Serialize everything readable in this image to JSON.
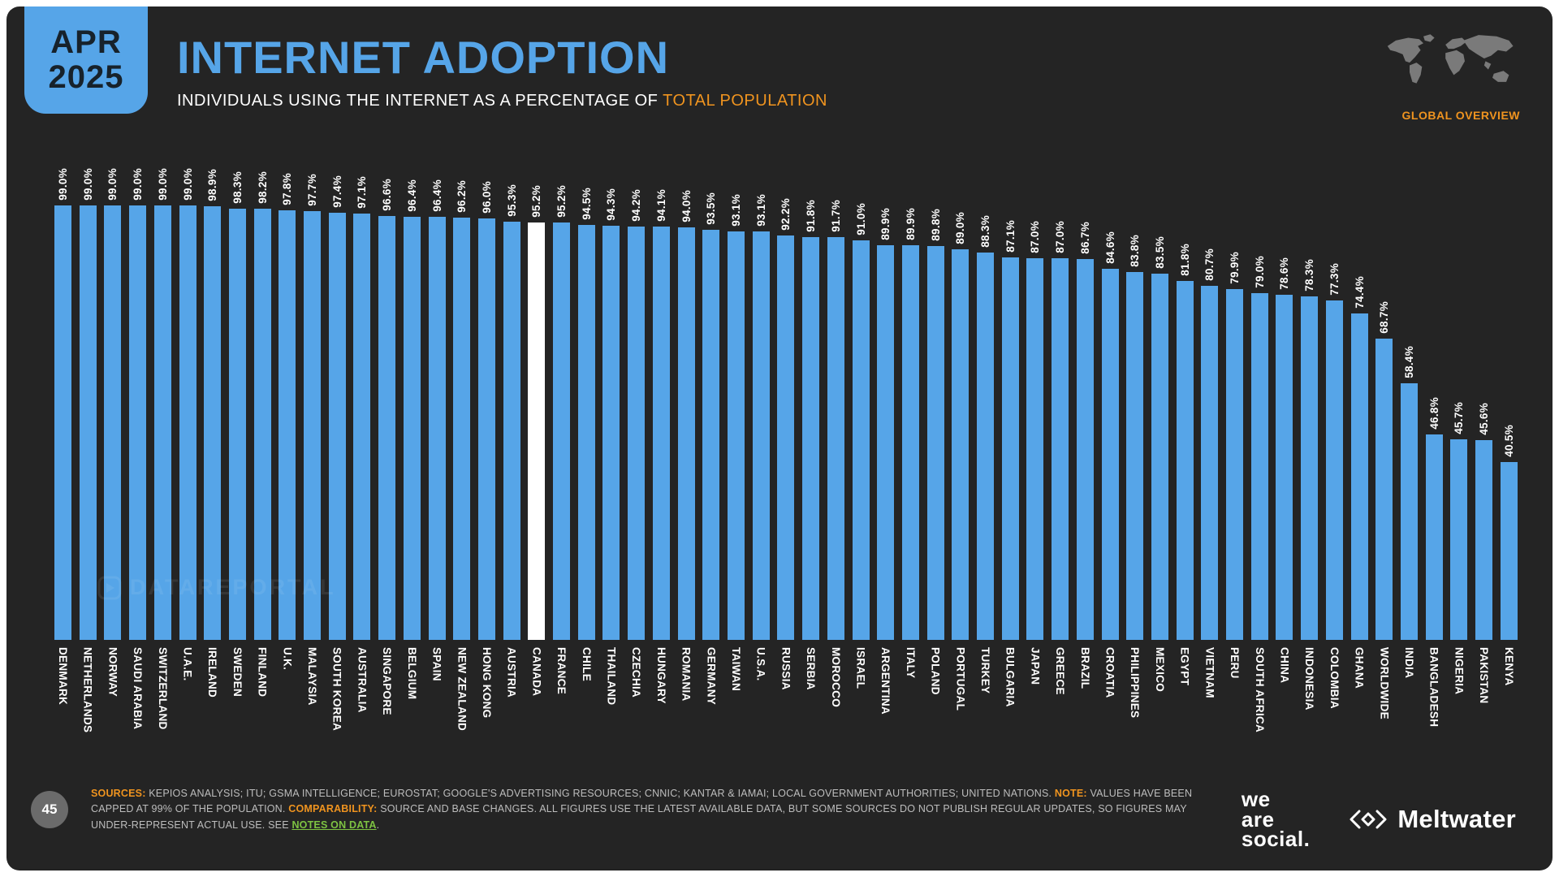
{
  "theme": {
    "background": "#242424",
    "blue": "#56a5e8",
    "orange": "#f0941f",
    "green_link": "#7dc242",
    "bar_highlight": "#ffffff"
  },
  "badge": {
    "month": "APR",
    "year": "2025"
  },
  "header": {
    "title": "INTERNET ADOPTION",
    "subtitle_prefix": "INDIVIDUALS USING THE INTERNET AS A PERCENTAGE OF ",
    "subtitle_highlight": "TOTAL POPULATION",
    "overview_label": "GLOBAL OVERVIEW"
  },
  "watermark": "DATAREPORTAL",
  "chart_data": {
    "type": "bar",
    "title": "Internet adoption — individuals using the internet as a percentage of total population (Apr 2025)",
    "unit": "%",
    "ylim": [
      0,
      100
    ],
    "grid": false,
    "legend": "none",
    "bar_color": "#56a5e8",
    "highlight_country": "CANADA",
    "highlight_color": "#ffffff",
    "categories": [
      "DENMARK",
      "NETHERLANDS",
      "NORWAY",
      "SAUDI ARABIA",
      "SWITZERLAND",
      "U.A.E.",
      "IRELAND",
      "SWEDEN",
      "FINLAND",
      "U.K.",
      "MALAYSIA",
      "SOUTH KOREA",
      "AUSTRALIA",
      "SINGAPORE",
      "BELGIUM",
      "SPAIN",
      "NEW ZEALAND",
      "HONG KONG",
      "AUSTRIA",
      "CANADA",
      "FRANCE",
      "CHILE",
      "THAILAND",
      "CZECHIA",
      "HUNGARY",
      "ROMANIA",
      "GERMANY",
      "TAIWAN",
      "U.S.A.",
      "RUSSIA",
      "SERBIA",
      "MOROCCO",
      "ISRAEL",
      "ARGENTINA",
      "ITALY",
      "POLAND",
      "PORTUGAL",
      "TURKEY",
      "BULGARIA",
      "JAPAN",
      "GREECE",
      "BRAZIL",
      "CROATIA",
      "PHILIPPINES",
      "MEXICO",
      "EGYPT",
      "VIETNAM",
      "PERU",
      "SOUTH AFRICA",
      "CHINA",
      "INDONESIA",
      "COLOMBIA",
      "GHANA",
      "WORLDWIDE",
      "INDIA",
      "BANGLADESH",
      "NIGERIA",
      "PAKISTAN",
      "KENYA"
    ],
    "values": [
      99.0,
      99.0,
      99.0,
      99.0,
      99.0,
      99.0,
      98.9,
      98.3,
      98.2,
      97.8,
      97.7,
      97.4,
      97.1,
      96.6,
      96.4,
      96.4,
      96.2,
      96.0,
      95.3,
      95.2,
      95.2,
      94.5,
      94.3,
      94.2,
      94.1,
      94.0,
      93.5,
      93.1,
      93.1,
      92.2,
      91.8,
      91.7,
      91.0,
      89.9,
      89.9,
      89.8,
      89.0,
      88.3,
      87.1,
      87.0,
      87.0,
      86.7,
      84.6,
      83.8,
      83.5,
      81.8,
      80.7,
      79.9,
      79.0,
      78.6,
      78.3,
      77.3,
      74.4,
      68.7,
      58.4,
      46.8,
      45.7,
      45.6,
      40.5
    ]
  },
  "footer": {
    "page_number": "45",
    "sources_label": "SOURCES:",
    "sources_text": " KEPIOS ANALYSIS; ITU; GSMA INTELLIGENCE; EUROSTAT; GOOGLE'S ADVERTISING RESOURCES; CNNIC; KANTAR & IAMAI; LOCAL GOVERNMENT AUTHORITIES; UNITED NATIONS. ",
    "note_label": "NOTE:",
    "note_text": " VALUES HAVE BEEN CAPPED AT 99% OF THE POPULATION. ",
    "comparability_label": "COMPARABILITY:",
    "comparability_text": " SOURCE AND BASE CHANGES. ALL FIGURES USE THE LATEST AVAILABLE DATA, BUT SOME SOURCES DO NOT PUBLISH REGULAR UPDATES, SO FIGURES MAY UNDER-REPRESENT ACTUAL USE. SEE ",
    "link_text": "NOTES ON DATA",
    "after_link": ".",
    "logo_we_are_social": [
      "we",
      "are",
      "social."
    ],
    "logo_meltwater": "Meltwater"
  }
}
